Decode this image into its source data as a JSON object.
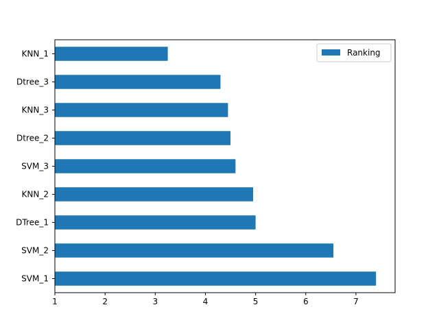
{
  "chart_data": {
    "type": "bar",
    "orientation": "horizontal",
    "categories": [
      "SVM_1",
      "SVM_2",
      "DTree_1",
      "KNN_2",
      "SVM_3",
      "Dtree_2",
      "KNN_3",
      "Dtree_3",
      "KNN_1"
    ],
    "series": [
      {
        "name": "Ranking",
        "color": "#1f77b4",
        "values": [
          7.4,
          6.55,
          5.0,
          4.95,
          4.6,
          4.5,
          4.45,
          4.3,
          3.25
        ]
      }
    ],
    "xlim": [
      1,
      7.78
    ],
    "xticks": [
      1,
      2,
      3,
      4,
      5,
      6,
      7
    ],
    "grid": false,
    "legend_position": "top-right",
    "title": "",
    "xlabel": "",
    "ylabel": ""
  }
}
